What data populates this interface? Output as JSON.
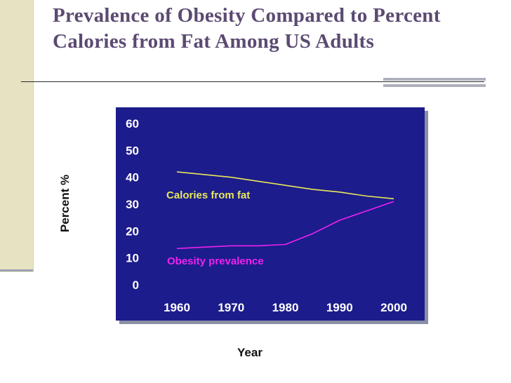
{
  "slide": {
    "title": "Prevalence of Obesity Compared to Percent Calories from Fat Among US Adults"
  },
  "chart_data": {
    "type": "line",
    "xlabel": "Year",
    "ylabel": "Percent %",
    "ylim": [
      0,
      60
    ],
    "xlim": [
      1960,
      2000
    ],
    "yticks": [
      "0",
      "10",
      "20",
      "30",
      "40",
      "50",
      "60"
    ],
    "xticks": [
      "1960",
      "1970",
      "1980",
      "1990",
      "2000"
    ],
    "grid": false,
    "series": [
      {
        "name": "Calories from fat",
        "color": "#e8e85a",
        "x": [
          1960,
          1965,
          1970,
          1975,
          1980,
          1985,
          1990,
          1995,
          2000
        ],
        "values": [
          42,
          41,
          40,
          38.5,
          37,
          35.5,
          34.5,
          33,
          32
        ]
      },
      {
        "name": "Obesity prevalence",
        "color": "#ee22ee",
        "x": [
          1960,
          1965,
          1970,
          1975,
          1980,
          1985,
          1990,
          1995,
          2000
        ],
        "values": [
          13.5,
          14,
          14.5,
          14.5,
          15,
          19,
          24,
          27.5,
          31
        ]
      }
    ],
    "colors": {
      "plot_background": "#1c1c8c",
      "tick_text": "#ffffff"
    }
  }
}
